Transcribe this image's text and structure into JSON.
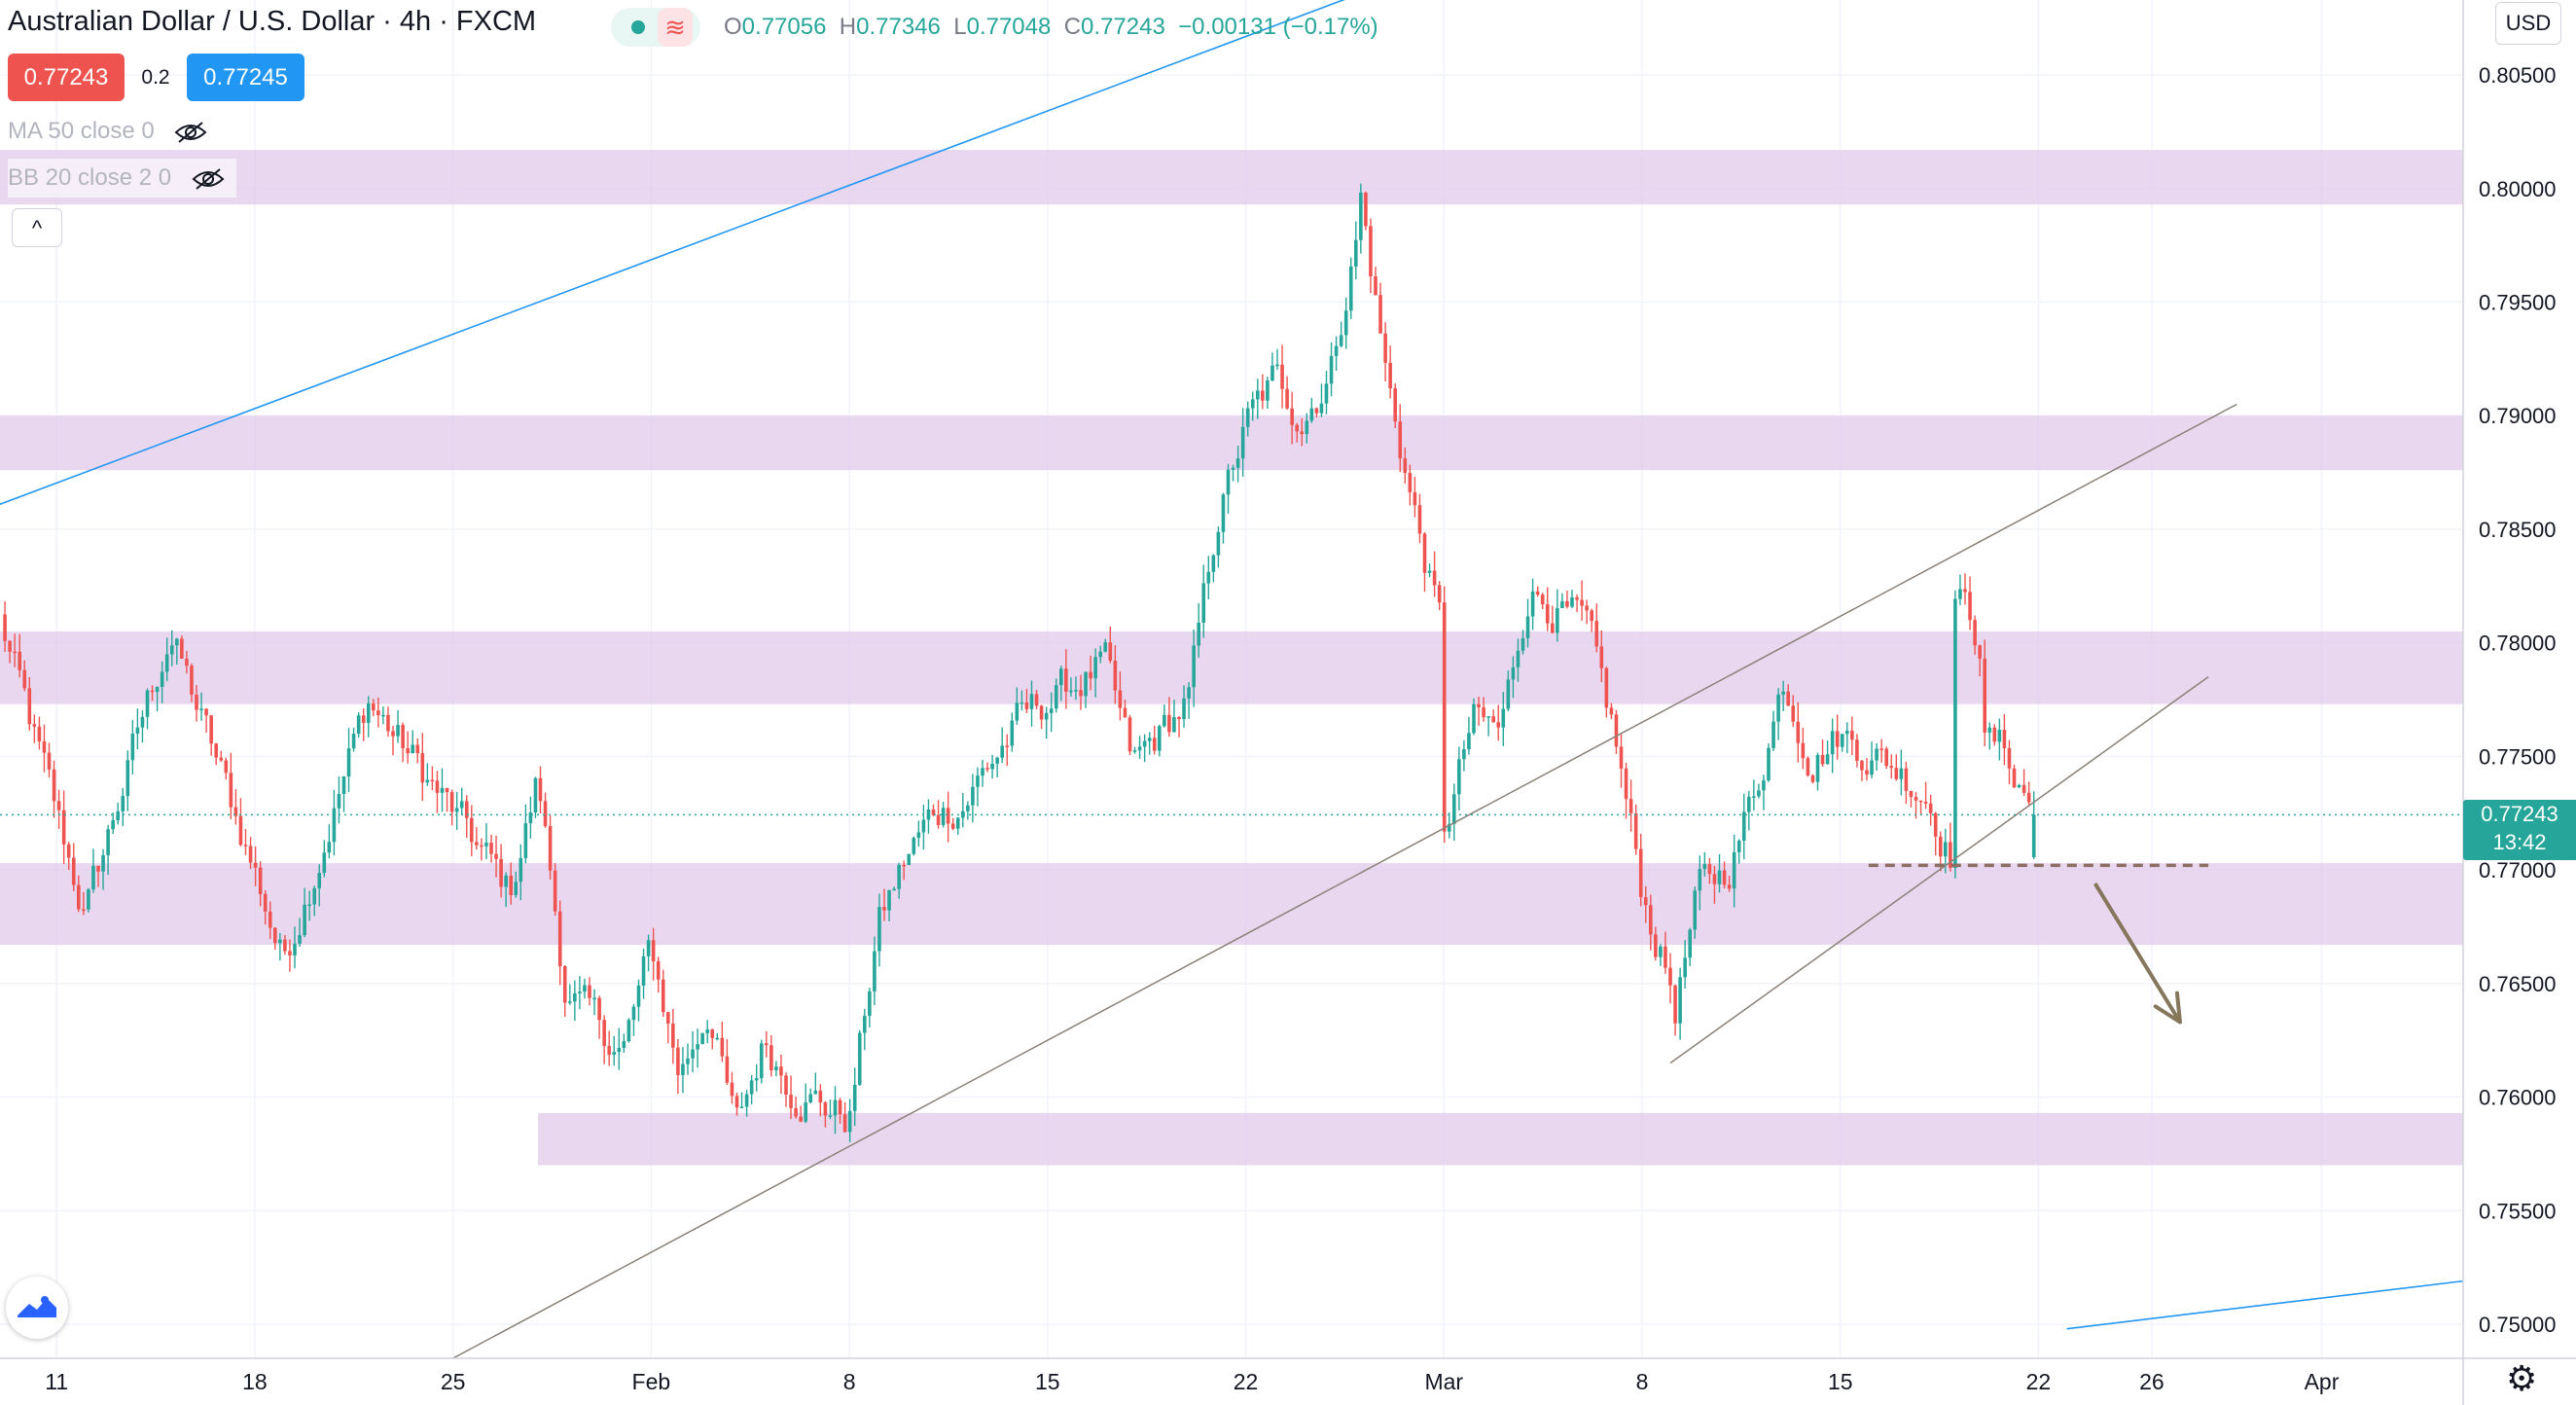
{
  "header": {
    "symbol_title": "Australian Dollar / U.S. Dollar · 4h · FXCM",
    "open_key": "O",
    "open": "0.77056",
    "high_key": "H",
    "high": "0.77346",
    "low_key": "L",
    "low": "0.77048",
    "close_key": "C",
    "close": "0.77243",
    "change": "−0.00131 (−0.17%)",
    "sell_price": "0.77243",
    "spread": "0.2",
    "buy_price": "0.77245",
    "collapse_glyph": "^"
  },
  "indicators": [
    {
      "label": "MA 50 close 0",
      "visible": false
    },
    {
      "label": "BB 20 close 2 0",
      "visible": false
    }
  ],
  "currency_button": "USD",
  "last_price_label": {
    "price": "0.77243",
    "countdown": "13:42",
    "color": "#26a69a"
  },
  "icons": {
    "status_dot": "live-dot-icon",
    "wave": "wave-icon",
    "eye": "eye-crossed-icon",
    "logo": "tradingview-logo-icon",
    "settings": "gear-icon",
    "arrow": "down-arrow-icon"
  },
  "colors": {
    "up": "#26a69a",
    "down": "#ef5350",
    "zone": "#e1c8ea",
    "trendline_blue": "#2196f3",
    "channel": "#8a8178",
    "arrow": "#85765c",
    "dashed_support": "#8d6e63"
  },
  "chart_data": {
    "type": "candlestick",
    "instrument": "AUD/USD",
    "interval": "4h",
    "y_axis": {
      "ticks": [
        "0.75000",
        "0.75500",
        "0.76000",
        "0.76500",
        "0.77000",
        "0.77500",
        "0.78000",
        "0.78500",
        "0.79000",
        "0.79500",
        "0.80000",
        "0.80500"
      ],
      "range": [
        0.7485,
        0.8083
      ]
    },
    "x_axis": {
      "ticks": [
        "11",
        "18",
        "25",
        "Feb",
        "8",
        "15",
        "22",
        "Mar",
        "8",
        "15",
        "22",
        "26",
        "Apr"
      ],
      "range": [
        "2021-01-09",
        "2021-04-06"
      ]
    },
    "last_price": 0.77243,
    "supply_demand_zones": [
      [
        0.7993,
        0.8017
      ],
      [
        0.7876,
        0.79
      ],
      [
        0.7773,
        0.7805
      ],
      [
        0.7667,
        0.7703
      ],
      [
        0.757,
        0.7593
      ]
    ],
    "trendlines": [
      {
        "style": "blue",
        "from": [
          "2021-01-09",
          0.7861
        ],
        "to": [
          "2021-02-28",
          0.8095
        ]
      },
      {
        "style": "blue",
        "from": [
          "2021-03-23",
          0.7498
        ],
        "to": [
          "2021-04-06",
          0.7519
        ]
      },
      {
        "style": "channel",
        "from": [
          "2021-01-25",
          0.7485
        ],
        "to": [
          "2021-03-29",
          0.7905
        ]
      },
      {
        "style": "channel",
        "from": [
          "2021-03-09",
          0.7615
        ],
        "to": [
          "2021-03-28",
          0.7785
        ]
      }
    ],
    "horizontal_levels": [
      {
        "style": "dashed",
        "from": "2021-03-16",
        "to": "2021-03-28",
        "price": 0.7702
      }
    ],
    "arrows": [
      {
        "from": [
          "2021-03-24",
          0.7694
        ],
        "to": [
          "2021-03-27",
          0.7633
        ]
      }
    ],
    "anchors": [
      [
        "2021-01-09",
        0.781
      ],
      [
        "2021-01-12",
        0.768
      ],
      [
        "2021-01-14",
        0.7765
      ],
      [
        "2021-01-15",
        0.7805
      ],
      [
        "2021-01-18",
        0.77
      ],
      [
        "2021-01-19",
        0.766
      ],
      [
        "2021-01-21",
        0.7735
      ],
      [
        "2021-01-22",
        0.7775
      ],
      [
        "2021-01-25",
        0.7725
      ],
      [
        "2021-01-27",
        0.769
      ],
      [
        "2021-01-28",
        0.774
      ],
      [
        "2021-01-29",
        0.7645
      ],
      [
        "2021-01-31",
        0.762
      ],
      [
        "2021-02-01",
        0.7665
      ],
      [
        "2021-02-02",
        0.761
      ],
      [
        "2021-02-03",
        0.764
      ],
      [
        "2021-02-04",
        0.7585
      ],
      [
        "2021-02-05",
        0.7625
      ],
      [
        "2021-02-06",
        0.7605
      ],
      [
        "2021-02-08",
        0.759
      ],
      [
        "2021-02-09",
        0.7675
      ],
      [
        "2021-02-10",
        0.7705
      ],
      [
        "2021-02-11",
        0.7725
      ],
      [
        "2021-02-12",
        0.773
      ],
      [
        "2021-02-14",
        0.7765
      ],
      [
        "2021-02-15",
        0.7775
      ],
      [
        "2021-02-17",
        0.779
      ],
      [
        "2021-02-18",
        0.7745
      ],
      [
        "2021-02-20",
        0.7775
      ],
      [
        "2021-02-21",
        0.7855
      ],
      [
        "2021-02-22",
        0.7895
      ],
      [
        "2021-02-23",
        0.7915
      ],
      [
        "2021-02-24",
        0.79
      ],
      [
        "2021-02-25",
        0.792
      ],
      [
        "2021-02-26",
        0.7985
      ],
      [
        "2021-02-26",
        0.8002
      ],
      [
        "2021-02-27",
        0.7915
      ],
      [
        "2021-02-28",
        0.7855
      ],
      [
        "2021-03-01",
        0.78
      ],
      [
        "2021-03-01",
        0.7715
      ],
      [
        "2021-03-02",
        0.7765
      ],
      [
        "2021-03-03",
        0.776
      ],
      [
        "2021-03-04",
        0.7825
      ],
      [
        "2021-03-06",
        0.7805
      ],
      [
        "2021-03-07",
        0.776
      ],
      [
        "2021-03-08",
        0.769
      ],
      [
        "2021-03-09",
        0.765
      ],
      [
        "2021-03-09",
        0.763
      ],
      [
        "2021-03-10",
        0.769
      ],
      [
        "2021-03-11",
        0.77
      ],
      [
        "2021-03-12",
        0.7735
      ],
      [
        "2021-03-13",
        0.7785
      ],
      [
        "2021-03-14",
        0.775
      ],
      [
        "2021-03-15",
        0.776
      ],
      [
        "2021-03-17",
        0.7745
      ],
      [
        "2021-03-18",
        0.7735
      ],
      [
        "2021-03-19",
        0.7705
      ],
      [
        "2021-03-19",
        0.7825
      ],
      [
        "2021-03-20",
        0.78
      ],
      [
        "2021-03-20",
        0.776
      ],
      [
        "2021-03-21",
        0.775
      ],
      [
        "2021-03-21",
        0.7745
      ],
      [
        "2021-03-22",
        0.7724
      ]
    ]
  }
}
